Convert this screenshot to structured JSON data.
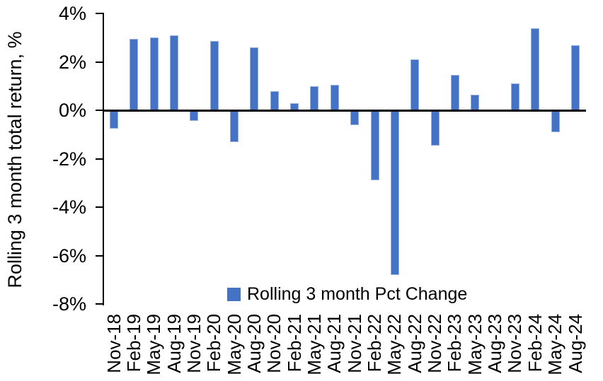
{
  "chart_data": {
    "type": "bar",
    "title": "",
    "xlabel": "",
    "ylabel": "Rolling 3 month total return, %",
    "categories": [
      "Nov-18",
      "Feb-19",
      "May-19",
      "Aug-19",
      "Nov-19",
      "Feb-20",
      "May-20",
      "Aug-20",
      "Nov-20",
      "Feb-21",
      "May-21",
      "Aug-21",
      "Nov-21",
      "Feb-22",
      "May-22",
      "Aug-22",
      "Nov-22",
      "Feb-23",
      "May-23",
      "Aug-23",
      "Nov-23",
      "Feb-24",
      "May-24",
      "Aug-24"
    ],
    "values": [
      -0.75,
      2.95,
      3.0,
      3.1,
      -0.45,
      2.85,
      -1.3,
      2.6,
      0.8,
      0.3,
      1.0,
      1.05,
      -0.6,
      -2.9,
      -6.8,
      2.1,
      -1.45,
      1.45,
      0.65,
      0.0,
      1.1,
      3.4,
      -0.9,
      2.7
    ],
    "ylim": [
      -8,
      4
    ],
    "yticks": [
      {
        "value": 4,
        "label": "4%"
      },
      {
        "value": 2,
        "label": "2%"
      },
      {
        "value": 0,
        "label": "0%"
      },
      {
        "value": -2,
        "label": "-2%"
      },
      {
        "value": -4,
        "label": "-4%"
      },
      {
        "value": -6,
        "label": "-6%"
      },
      {
        "value": -8,
        "label": "-8%"
      }
    ],
    "grid": false,
    "legend": {
      "label": "Rolling 3 month Pct Change",
      "position": "bottom-center"
    },
    "colors": {
      "bar": "#4472C4",
      "axis": "#000000",
      "text": "#000000",
      "background": "#FFFFFF"
    }
  }
}
